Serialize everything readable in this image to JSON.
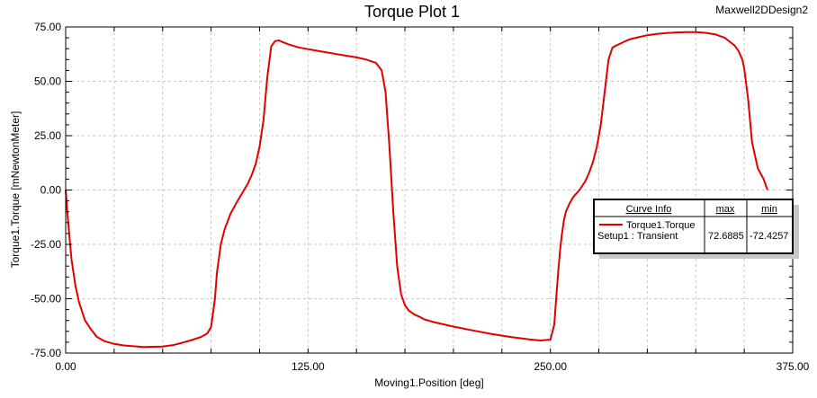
{
  "chart_data": {
    "type": "line",
    "title": "Torque Plot 1",
    "design_name": "Maxwell2DDesign2",
    "xlabel": "Moving1.Position [deg]",
    "ylabel": "Torque1.Torque [mNewtonMeter]",
    "xlim": [
      0,
      375
    ],
    "ylim": [
      -75,
      75
    ],
    "x_ticks": [
      0,
      125,
      250,
      375
    ],
    "y_ticks": [
      -75,
      -50,
      -25,
      0,
      25,
      50,
      75
    ],
    "x_tick_labels": [
      "0.00",
      "125.00",
      "250.00",
      "375.00"
    ],
    "y_tick_labels": [
      "-75.00",
      "-50.00",
      "-25.00",
      "0.00",
      "25.00",
      "50.00",
      "75.00"
    ],
    "x_minor_step": 25,
    "y_minor_step": 5,
    "grid": true,
    "series": [
      {
        "name": "Torque1.Torque",
        "color": "#e00000",
        "x": [
          0,
          1,
          2,
          3,
          5,
          7,
          10,
          13,
          16,
          20,
          25,
          30,
          40,
          50,
          55,
          60,
          65,
          70,
          73,
          75,
          77,
          78,
          80,
          82,
          85,
          88,
          90,
          92,
          94,
          96,
          98,
          100,
          102,
          104,
          106,
          108,
          110,
          112,
          115,
          120,
          125,
          130,
          140,
          150,
          155,
          160,
          163,
          165,
          167,
          169,
          171,
          173,
          175,
          177,
          180,
          183,
          185,
          190,
          200,
          210,
          220,
          230,
          240,
          245,
          250,
          252,
          253,
          254,
          255,
          256,
          257,
          258,
          260,
          262,
          265,
          268,
          270,
          272,
          274,
          276,
          278,
          280,
          282,
          284,
          286,
          288,
          290,
          292,
          295,
          300,
          305,
          310,
          315,
          320,
          325,
          330,
          335,
          340,
          345,
          347,
          349,
          350,
          352,
          354,
          357,
          360,
          362
        ],
        "y": [
          0,
          -12,
          -22,
          -32,
          -44,
          -52,
          -60,
          -64,
          -67.5,
          -69.5,
          -70.8,
          -71.5,
          -72.2,
          -72.0,
          -71.4,
          -70.3,
          -69.0,
          -67.5,
          -66,
          -63,
          -50,
          -38,
          -25,
          -18,
          -11,
          -6,
          -3,
          0,
          3,
          7,
          12,
          20,
          32,
          52,
          66,
          68.5,
          68.8,
          68.0,
          67.0,
          65.6,
          64.8,
          64.0,
          62.5,
          61.0,
          60.0,
          58.5,
          55,
          45,
          20,
          -10,
          -35,
          -48,
          -53,
          -55.5,
          -57.3,
          -58.5,
          -59.5,
          -60.8,
          -62.8,
          -64.6,
          -66.3,
          -67.7,
          -68.8,
          -69.2,
          -68.8,
          -62,
          -50,
          -38,
          -28,
          -20,
          -14,
          -10,
          -6,
          -3,
          0,
          4,
          8,
          13,
          20,
          30,
          45,
          60,
          65.5,
          66.5,
          67.3,
          68.2,
          69.0,
          69.6,
          70.2,
          71.2,
          71.8,
          72.2,
          72.5,
          72.6,
          72.6,
          72.3,
          71.6,
          70.0,
          66.5,
          64,
          60,
          56,
          42,
          22,
          10,
          5,
          0
        ]
      }
    ],
    "legend": {
      "placement": "center-right",
      "header": "Curve Info",
      "columns": [
        "max",
        "min"
      ],
      "entries": [
        {
          "name": "Torque1.Torque",
          "source": "Setup1 : Transient",
          "max": "72.6885",
          "min": "-72.4257",
          "color": "#e00000"
        }
      ]
    }
  }
}
